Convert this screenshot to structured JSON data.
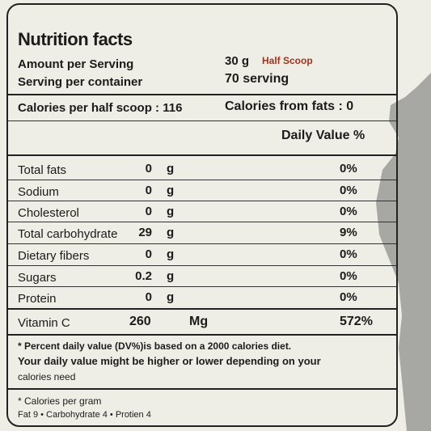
{
  "header": {
    "title": "Nutrition facts",
    "amount_label": "Amount per Serving",
    "amount_value": "30 g",
    "amount_note": "Half Scoop",
    "servings_label": "Serving per container",
    "servings_value": "70 serving"
  },
  "calories": {
    "per_half_scoop": "Calories per half scoop : 116",
    "from_fats": "Calories from fats : 0"
  },
  "daily_value_header": "Daily Value %",
  "nutrients": [
    {
      "name": "Total fats",
      "amount": "0",
      "unit": "g",
      "dv": "0%"
    },
    {
      "name": "Sodium",
      "amount": "0",
      "unit": "g",
      "dv": "0%"
    },
    {
      "name": "Cholesterol",
      "amount": "0",
      "unit": "g",
      "dv": "0%"
    },
    {
      "name": "Total carbohydrate",
      "amount": "29",
      "unit": "g",
      "dv": "9%"
    },
    {
      "name": "Dietary fibers",
      "amount": "0",
      "unit": "g",
      "dv": "0%"
    },
    {
      "name": "Sugars",
      "amount": "0.2",
      "unit": "g",
      "dv": "0%"
    },
    {
      "name": "Protein",
      "amount": "0",
      "unit": "g",
      "dv": "0%"
    }
  ],
  "vitamin": {
    "name": "Vitamin C",
    "amount": "260",
    "unit": "Mg",
    "dv": "572%"
  },
  "footnote": {
    "line1": "* Percent daily value (DV%)is based on a 2000 calories diet.",
    "line2": "Your daily value might be higher or lower depending on your",
    "line3": "calories need"
  },
  "calories_per_gram": {
    "title": "* Calories per gram",
    "detail": "Fat 9 • Carbohydrate 4 • Protien 4"
  }
}
